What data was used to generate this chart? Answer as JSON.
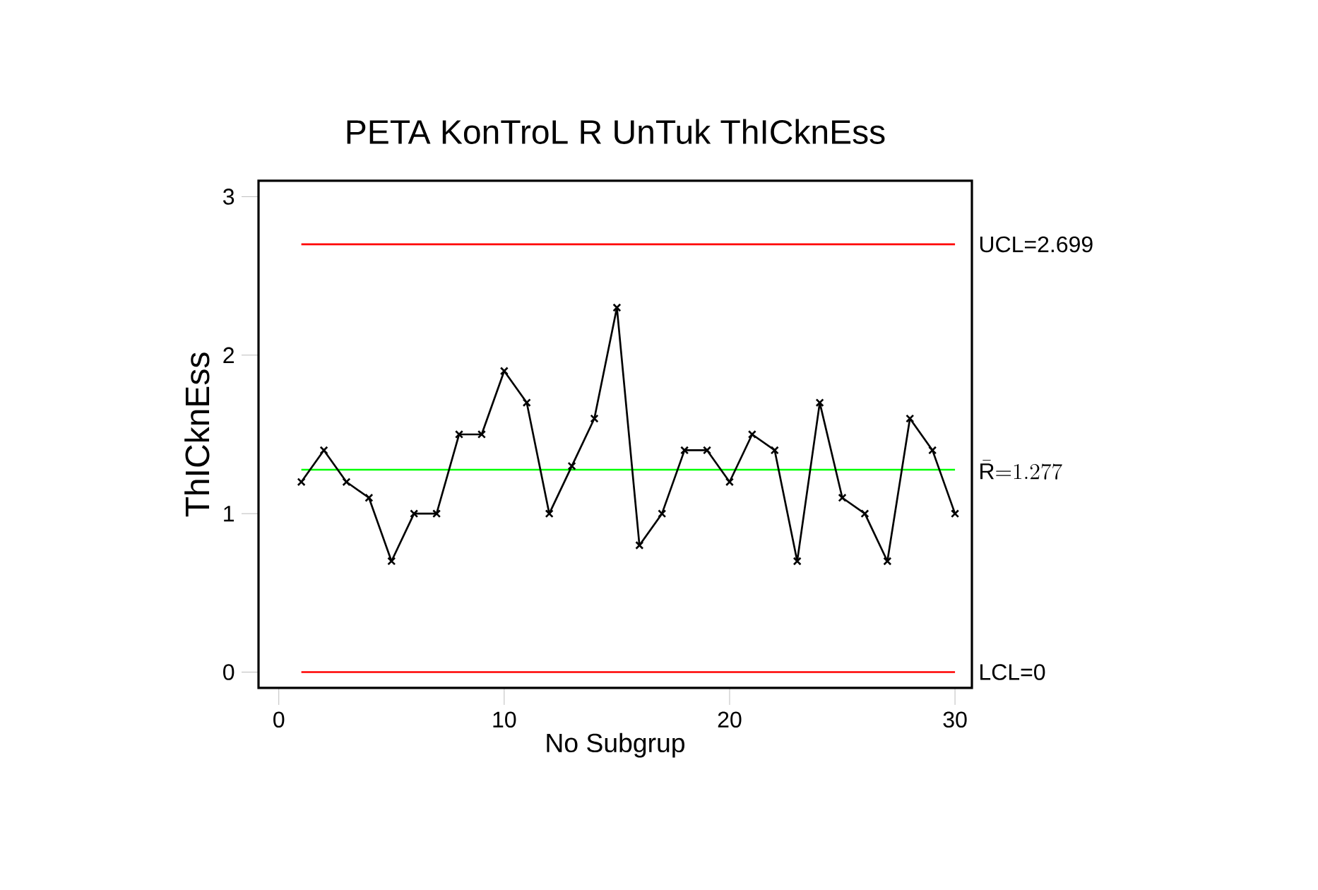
{
  "chart_data": {
    "type": "line",
    "title": "PETA KonTroL R UnTuk ThICknEss",
    "xlabel": "No Subgrup",
    "ylabel": "ThICknEss",
    "x": [
      1,
      2,
      3,
      4,
      5,
      6,
      7,
      8,
      9,
      10,
      11,
      12,
      13,
      14,
      15,
      16,
      17,
      18,
      19,
      20,
      21,
      22,
      23,
      24,
      25,
      26,
      27,
      28,
      29,
      30
    ],
    "series": [
      {
        "color": "#000000",
        "values": [
          1.2,
          1.4,
          1.2,
          1.1,
          0.7,
          1.0,
          1.0,
          1.5,
          1.5,
          1.9,
          1.7,
          1.0,
          1.3,
          1.6,
          2.3,
          0.8,
          1.0,
          1.4,
          1.4,
          1.2,
          1.5,
          1.4,
          0.7,
          1.7,
          1.1,
          1.0,
          0.7,
          1.6,
          1.4,
          1.0
        ]
      }
    ],
    "marker": "cross",
    "line_style": "solid",
    "xlim": [
      -0.9,
      30.75
    ],
    "ylim": [
      -0.1,
      3.1
    ],
    "xticks": [
      0,
      10,
      20,
      30
    ],
    "yticks": [
      0,
      1,
      2,
      3
    ],
    "grid": false,
    "ref_lines": [
      {
        "axis": "y",
        "value": 2.699,
        "label": "UCL=2.699",
        "color": "#ff0000"
      },
      {
        "axis": "y",
        "value": 1.277,
        "label": "\\bar{\\mathrm{R}}{=}1.277",
        "color": "#00ff00"
      },
      {
        "axis": "y",
        "value": 0,
        "label": "LCL=0",
        "color": "#ff0000"
      }
    ]
  }
}
